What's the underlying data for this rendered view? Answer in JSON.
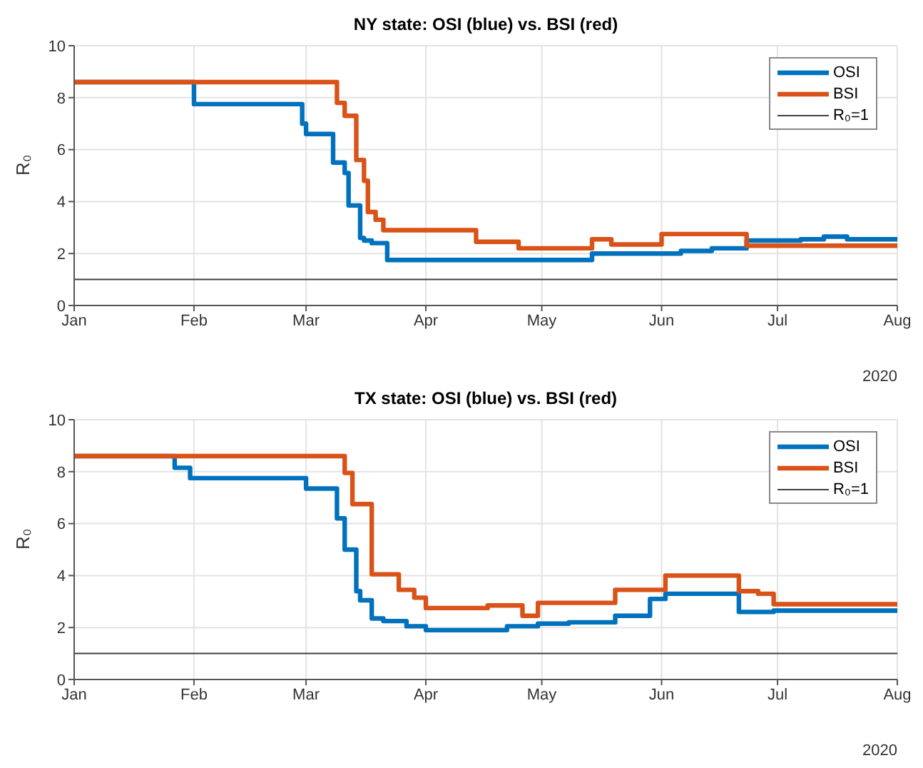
{
  "chart_data": [
    {
      "type": "step",
      "title": "NY state: OSI (blue) vs. BSI (red)",
      "ylabel": "R₀",
      "annotations": [
        "2020"
      ],
      "xlim": [
        "2020-01-01",
        "2020-08-01"
      ],
      "xticks": [
        {
          "value": "2020-01-01",
          "label": "Jan"
        },
        {
          "value": "2020-02-01",
          "label": "Feb"
        },
        {
          "value": "2020-03-01",
          "label": "Mar"
        },
        {
          "value": "2020-04-01",
          "label": "Apr"
        },
        {
          "value": "2020-05-01",
          "label": "May"
        },
        {
          "value": "2020-06-01",
          "label": "Jun"
        },
        {
          "value": "2020-07-01",
          "label": "Jul"
        },
        {
          "value": "2020-08-01",
          "label": "Aug"
        }
      ],
      "ylim": [
        0,
        10
      ],
      "yticks": [
        0,
        2,
        4,
        6,
        8,
        10
      ],
      "grid": true,
      "legend": "top right",
      "series": [
        {
          "name": "OSI",
          "color": "#0072bd",
          "x": [
            "2020-01-01",
            "2020-02-01",
            "2020-02-29",
            "2020-03-01",
            "2020-03-08",
            "2020-03-11",
            "2020-03-12",
            "2020-03-15",
            "2020-03-16",
            "2020-03-18",
            "2020-03-22",
            "2020-05-14",
            "2020-06-06",
            "2020-06-14",
            "2020-06-23",
            "2020-07-07",
            "2020-07-13",
            "2020-07-19",
            "2020-08-01"
          ],
          "values": [
            8.6,
            7.75,
            7.0,
            6.6,
            5.5,
            5.1,
            3.85,
            2.6,
            2.5,
            2.4,
            1.75,
            2.0,
            2.1,
            2.2,
            2.5,
            2.55,
            2.65,
            2.55,
            2.55
          ]
        },
        {
          "name": "BSI",
          "color": "#d95319",
          "x": [
            "2020-01-01",
            "2020-03-09",
            "2020-03-11",
            "2020-03-14",
            "2020-03-16",
            "2020-03-17",
            "2020-03-19",
            "2020-03-21",
            "2020-04-14",
            "2020-04-25",
            "2020-05-14",
            "2020-05-19",
            "2020-06-01",
            "2020-06-23",
            "2020-08-01"
          ],
          "values": [
            8.6,
            7.8,
            7.3,
            5.6,
            4.8,
            3.6,
            3.3,
            2.9,
            2.45,
            2.2,
            2.55,
            2.35,
            2.75,
            2.3,
            2.3
          ]
        }
      ],
      "ref_lines": [
        {
          "axis": "y",
          "value": 1,
          "label": "R₀=1",
          "color": "#404040"
        }
      ]
    },
    {
      "type": "step",
      "title": "TX state: OSI (blue) vs. BSI (red)",
      "ylabel": "R₀",
      "annotations": [
        "2020"
      ],
      "xlim": [
        "2020-01-01",
        "2020-08-01"
      ],
      "xticks": [
        {
          "value": "2020-01-01",
          "label": "Jan"
        },
        {
          "value": "2020-02-01",
          "label": "Feb"
        },
        {
          "value": "2020-03-01",
          "label": "Mar"
        },
        {
          "value": "2020-04-01",
          "label": "Apr"
        },
        {
          "value": "2020-05-01",
          "label": "May"
        },
        {
          "value": "2020-06-01",
          "label": "Jun"
        },
        {
          "value": "2020-07-01",
          "label": "Jul"
        },
        {
          "value": "2020-08-01",
          "label": "Aug"
        }
      ],
      "ylim": [
        0,
        10
      ],
      "yticks": [
        0,
        2,
        4,
        6,
        8,
        10
      ],
      "grid": true,
      "legend": "top right",
      "series": [
        {
          "name": "OSI",
          "color": "#0072bd",
          "x": [
            "2020-01-01",
            "2020-01-27",
            "2020-01-31",
            "2020-03-01",
            "2020-03-09",
            "2020-03-11",
            "2020-03-14",
            "2020-03-15",
            "2020-03-18",
            "2020-03-21",
            "2020-03-27",
            "2020-04-01",
            "2020-04-22",
            "2020-04-30",
            "2020-05-08",
            "2020-05-20",
            "2020-05-29",
            "2020-06-02",
            "2020-06-21",
            "2020-06-30",
            "2020-08-01"
          ],
          "values": [
            8.6,
            8.15,
            7.75,
            7.35,
            6.2,
            5.0,
            3.4,
            3.05,
            2.35,
            2.25,
            2.05,
            1.9,
            2.05,
            2.15,
            2.2,
            2.45,
            3.1,
            3.3,
            2.6,
            2.65,
            2.65
          ]
        },
        {
          "name": "BSI",
          "color": "#d95319",
          "x": [
            "2020-01-01",
            "2020-03-11",
            "2020-03-13",
            "2020-03-18",
            "2020-03-25",
            "2020-03-29",
            "2020-04-01",
            "2020-04-17",
            "2020-04-26",
            "2020-04-30",
            "2020-05-20",
            "2020-06-02",
            "2020-06-21",
            "2020-06-26",
            "2020-06-30",
            "2020-08-01"
          ],
          "values": [
            8.6,
            7.95,
            6.75,
            4.05,
            3.45,
            3.15,
            2.75,
            2.85,
            2.45,
            2.95,
            3.45,
            4.0,
            3.4,
            3.3,
            2.9,
            2.9
          ]
        }
      ],
      "ref_lines": [
        {
          "axis": "y",
          "value": 1,
          "label": "R₀=1",
          "color": "#404040"
        }
      ]
    }
  ]
}
